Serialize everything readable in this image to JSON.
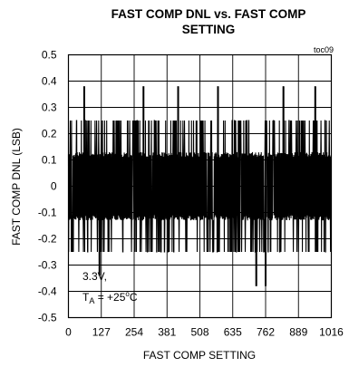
{
  "chart_data": {
    "type": "line",
    "title_line1": "FAST COMP DNL vs. FAST COMP",
    "title_line2": "SETTING",
    "figure_id": "toc09",
    "xlabel": "FAST COMP SETTING",
    "ylabel": "FAST COMP DNL (LSB)",
    "xlim": [
      0,
      1016
    ],
    "ylim": [
      -0.5,
      0.5
    ],
    "x_ticks": [
      0,
      127,
      254,
      381,
      508,
      635,
      762,
      889,
      1016
    ],
    "y_ticks": [
      0.5,
      0.4,
      0.3,
      0.2,
      0.1,
      0,
      -0.1,
      -0.2,
      -0.3,
      -0.4,
      -0.5
    ],
    "y_tick_labels": [
      "0.5",
      "0.4",
      "0.3",
      "0.2",
      "0.1",
      "0",
      "-0.1",
      "-0.2",
      "-0.3",
      "-0.4",
      "-0.5"
    ],
    "grid": true,
    "annotation": {
      "line1": "3.3V,",
      "t": "T",
      "t_sub": "A",
      "rest": " = +25",
      "deg": "o",
      "unit": "C"
    },
    "series": [
      {
        "band_upper": 0.12,
        "band_lower": -0.12,
        "dense_upper": 0.25,
        "dense_lower": -0.25,
        "spikes": [
          {
            "x": 61,
            "y": 0.38
          },
          {
            "x": 120,
            "y": -0.34
          },
          {
            "x": 290,
            "y": 0.38
          },
          {
            "x": 424,
            "y": 0.38
          },
          {
            "x": 578,
            "y": 0.38
          },
          {
            "x": 726,
            "y": -0.38
          },
          {
            "x": 762,
            "y": -0.38
          },
          {
            "x": 831,
            "y": 0.38
          },
          {
            "x": 954,
            "y": 0.38
          }
        ]
      }
    ]
  }
}
